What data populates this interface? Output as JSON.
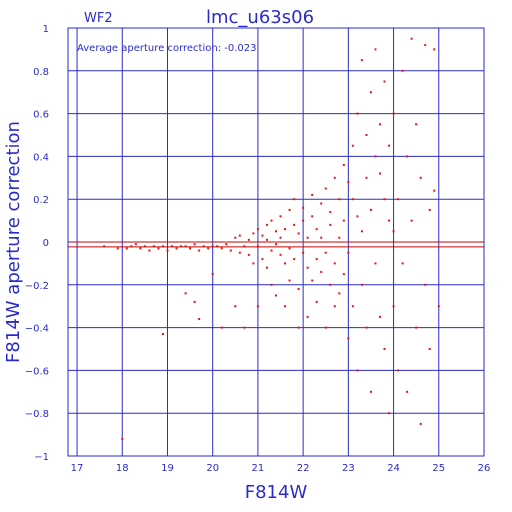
{
  "chart_data": {
    "type": "scatter",
    "title": "lmc_u63s06",
    "panel_label": "WF2",
    "annotation": "Average aperture correction: -0.023",
    "xlabel": "F814W",
    "ylabel": "F814W aperture correction",
    "xlim": [
      16.8,
      26.0
    ],
    "ylim": [
      -1.0,
      1.0
    ],
    "xticks": [
      17,
      18,
      19,
      20,
      21,
      22,
      23,
      24,
      25,
      26
    ],
    "yticks": [
      -1,
      -0.8,
      -0.6,
      -0.4,
      -0.2,
      0,
      0.2,
      0.4,
      0.6,
      0.8,
      1
    ],
    "xtick_labels": [
      "17",
      "18",
      "19",
      "20",
      "21",
      "22",
      "23",
      "24",
      "25",
      "26"
    ],
    "ytick_labels": [
      "−1",
      "−0.8",
      "−0.6",
      "−0.4",
      "−0.2",
      "0",
      "0.2",
      "0.4",
      "0.6",
      "0.8",
      "1"
    ],
    "grid": true,
    "ref_lines": [
      0.0,
      -0.023
    ],
    "colors": {
      "axes": "#2b2bcc",
      "points": "#ee1111",
      "ref": "#cc0000"
    },
    "series": [
      {
        "points": [
          [
            17.6,
            -0.02
          ],
          [
            17.9,
            -0.03
          ],
          [
            18.0,
            -0.92
          ],
          [
            18.1,
            -0.03
          ],
          [
            18.2,
            -0.02
          ],
          [
            18.3,
            -0.01
          ],
          [
            18.4,
            -0.03
          ],
          [
            18.5,
            -0.02
          ],
          [
            18.6,
            -0.04
          ],
          [
            18.7,
            -0.02
          ],
          [
            18.8,
            -0.03
          ],
          [
            18.9,
            -0.02
          ],
          [
            18.9,
            -0.43
          ],
          [
            19.0,
            -0.04
          ],
          [
            19.1,
            -0.02
          ],
          [
            19.2,
            -0.03
          ],
          [
            19.3,
            -0.02
          ],
          [
            19.4,
            -0.24
          ],
          [
            19.4,
            -0.02
          ],
          [
            19.5,
            -0.03
          ],
          [
            19.6,
            -0.28
          ],
          [
            19.6,
            -0.01
          ],
          [
            19.7,
            -0.36
          ],
          [
            19.7,
            -0.04
          ],
          [
            19.8,
            -0.02
          ],
          [
            19.9,
            -0.03
          ],
          [
            20.0,
            -0.02
          ],
          [
            20.0,
            -0.15
          ],
          [
            20.1,
            -0.02
          ],
          [
            20.2,
            -0.4
          ],
          [
            20.2,
            -0.03
          ],
          [
            20.3,
            -0.01
          ],
          [
            20.4,
            -0.04
          ],
          [
            20.5,
            0.02
          ],
          [
            20.5,
            -0.3
          ],
          [
            20.6,
            -0.05
          ],
          [
            20.6,
            0.03
          ],
          [
            20.7,
            -0.02
          ],
          [
            20.7,
            -0.4
          ],
          [
            20.8,
            0.01
          ],
          [
            20.8,
            -0.06
          ],
          [
            20.9,
            0.04
          ],
          [
            20.9,
            -0.1
          ],
          [
            21.0,
            -0.02
          ],
          [
            21.0,
            0.06
          ],
          [
            21.0,
            -0.3
          ],
          [
            21.1,
            0.03
          ],
          [
            21.1,
            -0.08
          ],
          [
            21.2,
            0.08
          ],
          [
            21.2,
            -0.12
          ],
          [
            21.2,
            0.01
          ],
          [
            21.3,
            -0.04
          ],
          [
            21.3,
            0.1
          ],
          [
            21.3,
            -0.2
          ],
          [
            21.4,
            0.05
          ],
          [
            21.4,
            -0.01
          ],
          [
            21.4,
            -0.25
          ],
          [
            21.5,
            0.12
          ],
          [
            21.5,
            -0.06
          ],
          [
            21.5,
            0.02
          ],
          [
            21.6,
            -0.1
          ],
          [
            21.6,
            0.06
          ],
          [
            21.6,
            -0.3
          ],
          [
            21.7,
            0.15
          ],
          [
            21.7,
            -0.03
          ],
          [
            21.7,
            -0.18
          ],
          [
            21.8,
            0.08
          ],
          [
            21.8,
            -0.08
          ],
          [
            21.8,
            0.2
          ],
          [
            21.9,
            0.04
          ],
          [
            21.9,
            -0.22
          ],
          [
            21.9,
            -0.4
          ],
          [
            22.0,
            0.1
          ],
          [
            22.0,
            -0.05
          ],
          [
            22.0,
            0.16
          ],
          [
            22.1,
            -0.12
          ],
          [
            22.1,
            0.02
          ],
          [
            22.1,
            -0.35
          ],
          [
            22.2,
            0.12
          ],
          [
            22.2,
            -0.18
          ],
          [
            22.2,
            0.22
          ],
          [
            22.3,
            0.06
          ],
          [
            22.3,
            -0.08
          ],
          [
            22.3,
            -0.28
          ],
          [
            22.4,
            0.18
          ],
          [
            22.4,
            0.02
          ],
          [
            22.4,
            -0.14
          ],
          [
            22.5,
            0.25
          ],
          [
            22.5,
            -0.05
          ],
          [
            22.5,
            -0.4
          ],
          [
            22.6,
            0.14
          ],
          [
            22.6,
            -0.2
          ],
          [
            22.6,
            0.08
          ],
          [
            22.7,
            0.3
          ],
          [
            22.7,
            -0.1
          ],
          [
            22.7,
            -0.3
          ],
          [
            22.8,
            0.2
          ],
          [
            22.8,
            0.02
          ],
          [
            22.8,
            -0.24
          ],
          [
            22.9,
            0.36
          ],
          [
            22.9,
            0.1
          ],
          [
            22.9,
            -0.15
          ],
          [
            23.0,
            0.28
          ],
          [
            23.0,
            -0.05
          ],
          [
            23.0,
            -0.45
          ],
          [
            23.1,
            0.2
          ],
          [
            23.1,
            -0.3
          ],
          [
            23.1,
            0.45
          ],
          [
            23.2,
            0.12
          ],
          [
            23.2,
            -0.6
          ],
          [
            23.2,
            0.6
          ],
          [
            23.3,
            0.05
          ],
          [
            23.3,
            -0.2
          ],
          [
            23.3,
            0.85
          ],
          [
            23.4,
            0.3
          ],
          [
            23.4,
            -0.4
          ],
          [
            23.4,
            0.5
          ],
          [
            23.5,
            0.15
          ],
          [
            23.5,
            -0.7
          ],
          [
            23.5,
            0.7
          ],
          [
            23.6,
            0.4
          ],
          [
            23.6,
            -0.1
          ],
          [
            23.6,
            0.9
          ],
          [
            23.7,
            0.32
          ],
          [
            23.7,
            -0.35
          ],
          [
            23.7,
            0.55
          ],
          [
            23.8,
            0.2
          ],
          [
            23.8,
            -0.5
          ],
          [
            23.8,
            0.75
          ],
          [
            23.9,
            0.1
          ],
          [
            23.9,
            -0.8
          ],
          [
            23.9,
            0.45
          ],
          [
            24.0,
            0.05
          ],
          [
            24.0,
            -0.3
          ],
          [
            24.0,
            0.6
          ],
          [
            24.1,
            0.2
          ],
          [
            24.1,
            -0.6
          ],
          [
            24.2,
            0.8
          ],
          [
            24.2,
            -0.1
          ],
          [
            24.3,
            0.4
          ],
          [
            24.3,
            -0.7
          ],
          [
            24.4,
            0.95
          ],
          [
            24.4,
            0.1
          ],
          [
            24.5,
            -0.4
          ],
          [
            24.5,
            0.55
          ],
          [
            24.6,
            0.3
          ],
          [
            24.6,
            -0.85
          ],
          [
            24.7,
            0.92
          ],
          [
            24.7,
            -0.2
          ],
          [
            24.8,
            0.15
          ],
          [
            24.8,
            -0.5
          ],
          [
            24.9,
            0.9
          ],
          [
            24.9,
            0.24
          ],
          [
            25.0,
            -0.3
          ]
        ]
      }
    ]
  }
}
